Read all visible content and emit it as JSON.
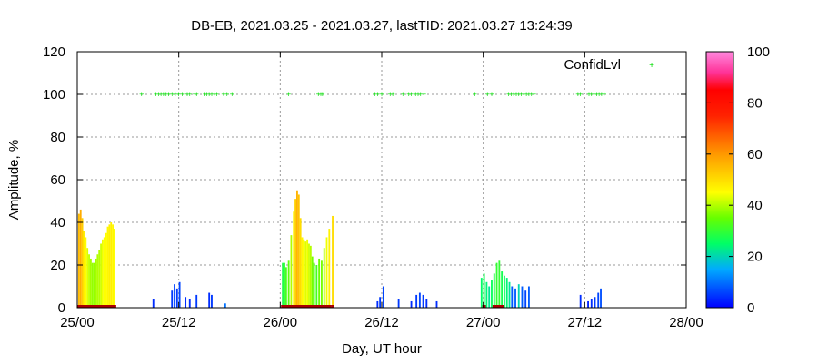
{
  "chart_data": {
    "type": "bar",
    "title": "DB-EB, 2021.03.25 - 2021.03.27, lastTID: 2021.03.27 13:24:39",
    "xlabel": "Day, UT hour",
    "ylabel": "Amplitude, %",
    "xlim": [
      0,
      72
    ],
    "ylim": [
      0,
      120
    ],
    "x_ticks": [
      {
        "value": 0,
        "label": "25/00"
      },
      {
        "value": 12,
        "label": "25/12"
      },
      {
        "value": 24,
        "label": "26/00"
      },
      {
        "value": 36,
        "label": "26/12"
      },
      {
        "value": 48,
        "label": "27/00"
      },
      {
        "value": 60,
        "label": "27/12"
      },
      {
        "value": 72,
        "label": "28/00"
      }
    ],
    "y_ticks": [
      0,
      20,
      40,
      60,
      80,
      100,
      120
    ],
    "grid": true,
    "legend": {
      "position": "top-right",
      "entries": [
        "ConfidLvl"
      ]
    },
    "colorbar": {
      "min": 0,
      "max": 100,
      "ticks": [
        0,
        20,
        40,
        60,
        80,
        100
      ]
    },
    "colors": {
      "confid_marker": "#00dd00",
      "baseline": "#aa0000",
      "grid": "#999999"
    },
    "series": [
      {
        "name": "Amplitude",
        "x": [
          0.2,
          0.4,
          0.6,
          0.8,
          1.0,
          1.2,
          1.4,
          1.6,
          1.8,
          2.0,
          2.2,
          2.4,
          2.6,
          2.8,
          3.0,
          3.2,
          3.4,
          3.6,
          3.8,
          4.0,
          4.2,
          4.4,
          9.0,
          11.2,
          11.5,
          11.8,
          12.1,
          12.8,
          13.3,
          14.1,
          15.6,
          15.9,
          17.5,
          24.3,
          24.5,
          24.7,
          25.0,
          25.3,
          25.6,
          25.8,
          26.0,
          26.2,
          26.4,
          26.6,
          26.8,
          27.0,
          27.2,
          27.4,
          27.6,
          27.8,
          28.0,
          28.3,
          28.6,
          28.9,
          29.2,
          29.5,
          29.8,
          30.2,
          35.5,
          35.8,
          36.2,
          38.0,
          39.5,
          40.1,
          40.5,
          40.9,
          41.3,
          42.5,
          47.8,
          48.1,
          48.4,
          48.7,
          49.0,
          49.3,
          49.6,
          49.9,
          50.2,
          50.5,
          50.8,
          51.1,
          51.4,
          51.8,
          52.2,
          52.6,
          53.0,
          53.4,
          59.5,
          60.4,
          60.8,
          61.2,
          61.6,
          61.9
        ],
        "values": [
          44,
          46,
          42,
          36,
          33,
          28,
          25,
          23,
          21,
          21,
          23,
          25,
          27,
          30,
          32,
          33,
          35,
          38,
          39,
          40,
          39,
          37,
          4,
          8,
          11,
          9,
          12,
          5,
          4,
          6,
          7,
          6,
          2,
          21,
          21,
          19,
          22,
          34,
          45,
          51,
          55,
          53,
          42,
          33,
          32,
          31,
          32,
          30,
          29,
          24,
          21,
          20,
          23,
          22,
          28,
          33,
          37,
          43,
          3,
          5,
          10,
          4,
          3,
          6,
          7,
          6,
          4,
          3,
          14,
          16,
          12,
          10,
          13,
          16,
          21,
          22,
          17,
          15,
          14,
          12,
          10,
          9,
          11,
          10,
          8,
          10,
          6,
          3,
          4,
          5,
          7,
          9
        ],
        "confidence": [
          55,
          57,
          52,
          47,
          45,
          43,
          41,
          39,
          38,
          38,
          39,
          40,
          40,
          42,
          44,
          45,
          45,
          46,
          47,
          47,
          46,
          45,
          4,
          5,
          6,
          5,
          6,
          4,
          4,
          5,
          4,
          5,
          10,
          28,
          30,
          32,
          34,
          40,
          46,
          52,
          56,
          54,
          50,
          46,
          45,
          43,
          44,
          42,
          40,
          36,
          33,
          32,
          35,
          36,
          40,
          44,
          47,
          50,
          4,
          5,
          6,
          5,
          4,
          5,
          6,
          5,
          4,
          4,
          25,
          27,
          24,
          22,
          26,
          28,
          30,
          30,
          27,
          26,
          24,
          22,
          8,
          8,
          20,
          8,
          6,
          8,
          4,
          3,
          4,
          5,
          6,
          7
        ]
      },
      {
        "name": "ConfidLvl",
        "x": [
          7.6,
          9.3,
          9.6,
          9.9,
          10.2,
          10.5,
          10.8,
          11.2,
          11.6,
          12.0,
          12.4,
          13.0,
          13.3,
          13.9,
          14.1,
          15.1,
          15.3,
          15.6,
          15.9,
          16.2,
          16.5,
          17.3,
          17.7,
          18.3,
          25.0,
          28.5,
          28.8,
          29.0,
          35.2,
          35.5,
          36.0,
          37.0,
          37.3,
          38.5,
          39.2,
          39.5,
          40.0,
          40.3,
          40.6,
          41.0,
          47.0,
          48.5,
          49.0,
          51.0,
          51.3,
          51.6,
          51.9,
          52.2,
          52.5,
          52.8,
          53.1,
          53.4,
          53.7,
          54.0,
          59.2,
          59.5,
          60.5,
          60.8,
          61.1,
          61.4,
          61.7,
          62.0,
          62.3
        ],
        "values": [
          100,
          100,
          100,
          100,
          100,
          100,
          100,
          100,
          100,
          100,
          100,
          100,
          100,
          100,
          100,
          100,
          100,
          100,
          100,
          100,
          100,
          100,
          100,
          100,
          100,
          100,
          100,
          100,
          100,
          100,
          100,
          100,
          100,
          100,
          100,
          100,
          100,
          100,
          100,
          100,
          100,
          100,
          100,
          100,
          100,
          100,
          100,
          100,
          100,
          100,
          100,
          100,
          100,
          100,
          100,
          100,
          100,
          100,
          100,
          100,
          100,
          100,
          100
        ]
      }
    ]
  }
}
